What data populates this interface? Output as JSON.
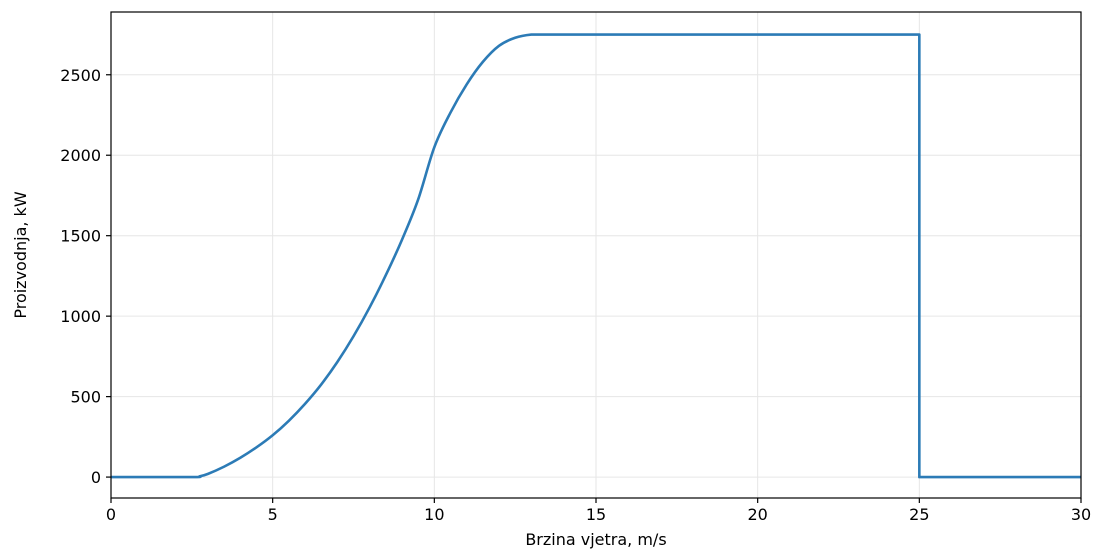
{
  "chart_data": {
    "type": "line",
    "title": "",
    "xlabel": "Brzina vjetra, m/s",
    "ylabel": "Proizvodnja, kW",
    "xlim": [
      0,
      30
    ],
    "ylim": [
      -130,
      2890
    ],
    "xticks": [
      0,
      5,
      10,
      15,
      20,
      25,
      30
    ],
    "xtick_labels": [
      "0",
      "5",
      "10",
      "15",
      "20",
      "25",
      "30"
    ],
    "yticks": [
      0,
      500,
      1000,
      1500,
      2000,
      2500
    ],
    "ytick_labels": [
      "0",
      "500",
      "1000",
      "1500",
      "2000",
      "2500"
    ],
    "grid": true,
    "legend": "none",
    "colors": {
      "line": "#2c7bb6",
      "grid": "#e6e6e6",
      "axes": "#000000"
    },
    "series": [
      {
        "x": [
          0,
          2.5,
          2.75,
          3,
          3.5,
          4,
          4.5,
          5,
          5.5,
          6,
          6.5,
          7,
          7.5,
          8,
          8.5,
          9,
          9.5,
          10,
          10.5,
          11,
          11.5,
          12,
          12.5,
          13,
          13.5,
          14,
          15,
          16,
          17,
          18,
          19,
          20,
          21,
          22,
          23,
          24,
          25,
          25,
          26,
          27,
          28,
          29,
          30
        ],
        "y": [
          0,
          0,
          5,
          20,
          65,
          120,
          185,
          260,
          350,
          455,
          575,
          715,
          875,
          1055,
          1255,
          1475,
          1725,
          2050,
          2265,
          2440,
          2580,
          2680,
          2730,
          2750,
          2750,
          2750,
          2750,
          2750,
          2750,
          2750,
          2750,
          2750,
          2750,
          2750,
          2750,
          2750,
          2750,
          0,
          0,
          0,
          0,
          0,
          0
        ]
      }
    ]
  }
}
